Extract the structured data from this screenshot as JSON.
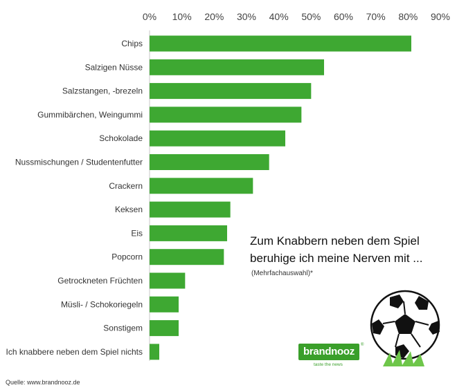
{
  "chart_data": {
    "type": "bar",
    "orientation": "horizontal",
    "categories": [
      "Chips",
      "Salzigen Nüsse",
      "Salzstangen, -brezeln",
      "Gummibärchen, Weingummi",
      "Schokolade",
      "Nussmischungen / Studentenfutter",
      "Crackern",
      "Keksen",
      "Eis",
      "Popcorn",
      "Getrockneten Früchten",
      "Müsli- / Schokoriegeln",
      "Sonstigem",
      "Ich knabbere neben dem Spiel nichts"
    ],
    "values": [
      81,
      54,
      50,
      47,
      42,
      37,
      32,
      25,
      24,
      23,
      11,
      9,
      9,
      3
    ],
    "xlim": [
      0,
      90
    ],
    "ticks": [
      0,
      10,
      20,
      30,
      40,
      50,
      60,
      70,
      80,
      90
    ],
    "tick_labels": [
      "0%",
      "10%",
      "20%",
      "30%",
      "40%",
      "50%",
      "60%",
      "70%",
      "80%",
      "90%"
    ],
    "axis_position": "top",
    "grid": false,
    "bar_color": "#3ea832"
  },
  "annotation": {
    "title_line1": "Zum Knabbern neben dem Spiel",
    "title_line2": "beruhige ich meine Nerven mit ...",
    "subtitle": "(Mehrfachauswahl)*"
  },
  "logo": {
    "text": "brandnooz",
    "tagline": "taste the news",
    "reg": "®",
    "color": "#3a9f2a"
  },
  "source": "Quelle: www.brandnooz.de",
  "ball_icon": "soccer-ball-icon"
}
